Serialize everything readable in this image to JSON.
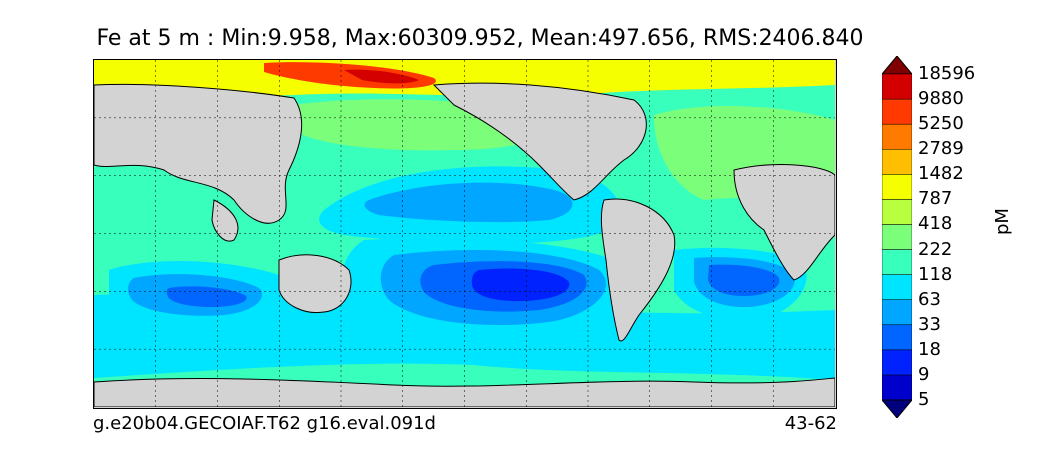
{
  "chart_data": {
    "type": "heatmap",
    "title": "Fe at 5 m : Min:9.958, Max:60309.952, Mean:497.656, RMS:2406.840",
    "footer_left": "g.e20b04.GECOIAF.T62 g16.eval.091d",
    "footer_right": "43-62",
    "colorbar": {
      "units": "pM",
      "levels": [
        "5",
        "9",
        "18",
        "33",
        "63",
        "118",
        "222",
        "418",
        "787",
        "1482",
        "2789",
        "5250",
        "9880",
        "18596"
      ],
      "colors": [
        "#00007f",
        "#0000cc",
        "#0022ff",
        "#0066ff",
        "#00a6ff",
        "#00e5ff",
        "#39ffbd",
        "#7bff7b",
        "#b8ff3f",
        "#f5ff00",
        "#ffbf00",
        "#ff7b00",
        "#ff3a00",
        "#d40000",
        "#7f0000"
      ],
      "extend": "both"
    },
    "grid": true,
    "land_color": "#d3d3d3"
  }
}
